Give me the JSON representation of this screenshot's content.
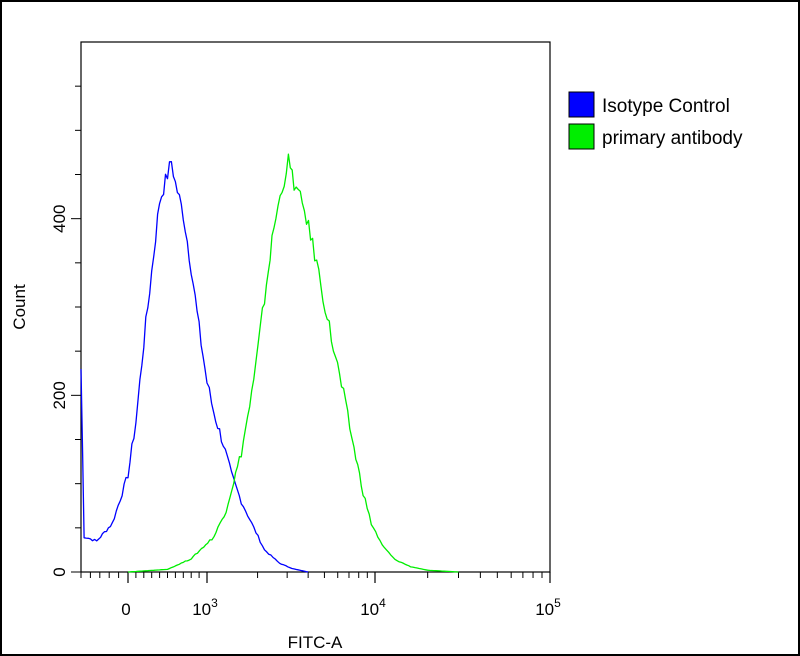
{
  "chart_data": {
    "type": "line",
    "xlabel": "FITC-A",
    "ylabel": "Count",
    "x_scale": "logicle",
    "x_ticks": [
      {
        "value": 0,
        "label": "0",
        "exp": ""
      },
      {
        "value": 1000,
        "label": "10",
        "exp": "3"
      },
      {
        "value": 10000,
        "label": "10",
        "exp": "4"
      },
      {
        "value": 100000,
        "label": "10",
        "exp": "5"
      }
    ],
    "y_ticks": [
      0,
      200,
      400
    ],
    "ylim": [
      0,
      600
    ],
    "grid": false,
    "legend_position": "top-right outside",
    "series": [
      {
        "name": "Isotype Control",
        "color": "#0000ff",
        "points": [
          [
            -300,
            230
          ],
          [
            -280,
            40
          ],
          [
            -200,
            35
          ],
          [
            -100,
            55
          ],
          [
            0,
            110
          ],
          [
            100,
            170
          ],
          [
            200,
            260
          ],
          [
            300,
            340
          ],
          [
            400,
            420
          ],
          [
            500,
            450
          ],
          [
            550,
            465
          ],
          [
            600,
            440
          ],
          [
            700,
            405
          ],
          [
            800,
            345
          ],
          [
            900,
            275
          ],
          [
            1000,
            215
          ],
          [
            1100,
            180
          ],
          [
            1250,
            145
          ],
          [
            1400,
            110
          ],
          [
            1600,
            80
          ],
          [
            1900,
            50
          ],
          [
            2200,
            25
          ],
          [
            2700,
            10
          ],
          [
            3200,
            4
          ],
          [
            4000,
            0
          ]
        ]
      },
      {
        "name": "primary antibody",
        "color": "#00ee00",
        "points": [
          [
            0,
            0
          ],
          [
            500,
            3
          ],
          [
            800,
            15
          ],
          [
            1100,
            40
          ],
          [
            1300,
            70
          ],
          [
            1600,
            135
          ],
          [
            1900,
            215
          ],
          [
            2200,
            310
          ],
          [
            2500,
            390
          ],
          [
            2800,
            435
          ],
          [
            3050,
            465
          ],
          [
            3300,
            440
          ],
          [
            3800,
            410
          ],
          [
            4500,
            350
          ],
          [
            5500,
            265
          ],
          [
            6500,
            200
          ],
          [
            7500,
            140
          ],
          [
            8500,
            90
          ],
          [
            9500,
            55
          ],
          [
            11000,
            30
          ],
          [
            13000,
            14
          ],
          [
            16000,
            6
          ],
          [
            20000,
            2
          ],
          [
            30000,
            0
          ]
        ]
      }
    ]
  }
}
